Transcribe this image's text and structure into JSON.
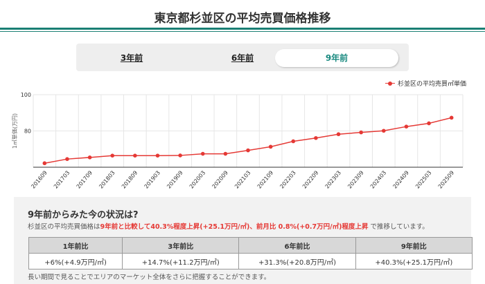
{
  "header": {
    "title": "東京都杉並区の平均売買価格推移"
  },
  "tabs": [
    {
      "label": "3年前",
      "active": false
    },
    {
      "label": "6年前",
      "active": false
    },
    {
      "label": "9年前",
      "active": true
    }
  ],
  "colors": {
    "accent": "#1a7f74",
    "series": "#e53935",
    "active_tab_text": "#1a8a80"
  },
  "chart_data": {
    "type": "line",
    "ylabel": "1㎡単価(万円)",
    "ylim": [
      60,
      100
    ],
    "yticks": [
      "100",
      "80"
    ],
    "grid": true,
    "legend_position": "top-right",
    "categories": [
      "201609",
      "201703",
      "201709",
      "201803",
      "201809",
      "201903",
      "201909",
      "202003",
      "202009",
      "202103",
      "202109",
      "202203",
      "202209",
      "202303",
      "202309",
      "202403",
      "202409",
      "202503",
      "202509"
    ],
    "series": [
      {
        "name": "杉並区の平均売買㎡単価",
        "values": [
          62.2,
          64.5,
          65.4,
          66.4,
          66.4,
          66.4,
          66.5,
          67.4,
          67.4,
          69.3,
          71.3,
          74.3,
          76.1,
          78.2,
          79.2,
          80.1,
          82.4,
          84.2,
          87.3
        ]
      }
    ]
  },
  "summary": {
    "title": "9年前からみた今の状況は?",
    "desc_prefix": "杉並区の平均売買価格は",
    "desc_highlight": "9年前と比較して40.3%程度上昇(+25.1万円/㎡)、前月比 0.8%(+0.7万円/㎡)程度上昇",
    "desc_suffix": " で推移しています。",
    "table": {
      "headers": [
        "1年前比",
        "3年前比",
        "6年前比",
        "9年前比"
      ],
      "values": [
        "+6%(+4.9万円/㎡)",
        "+14.7%(+11.2万円/㎡)",
        "+31.3%(+20.8万円/㎡)",
        "+40.3%(+25.1万円/㎡)"
      ]
    },
    "note": "長い期間で見ることでエリアのマーケット全体をさらに把握することができます。"
  }
}
